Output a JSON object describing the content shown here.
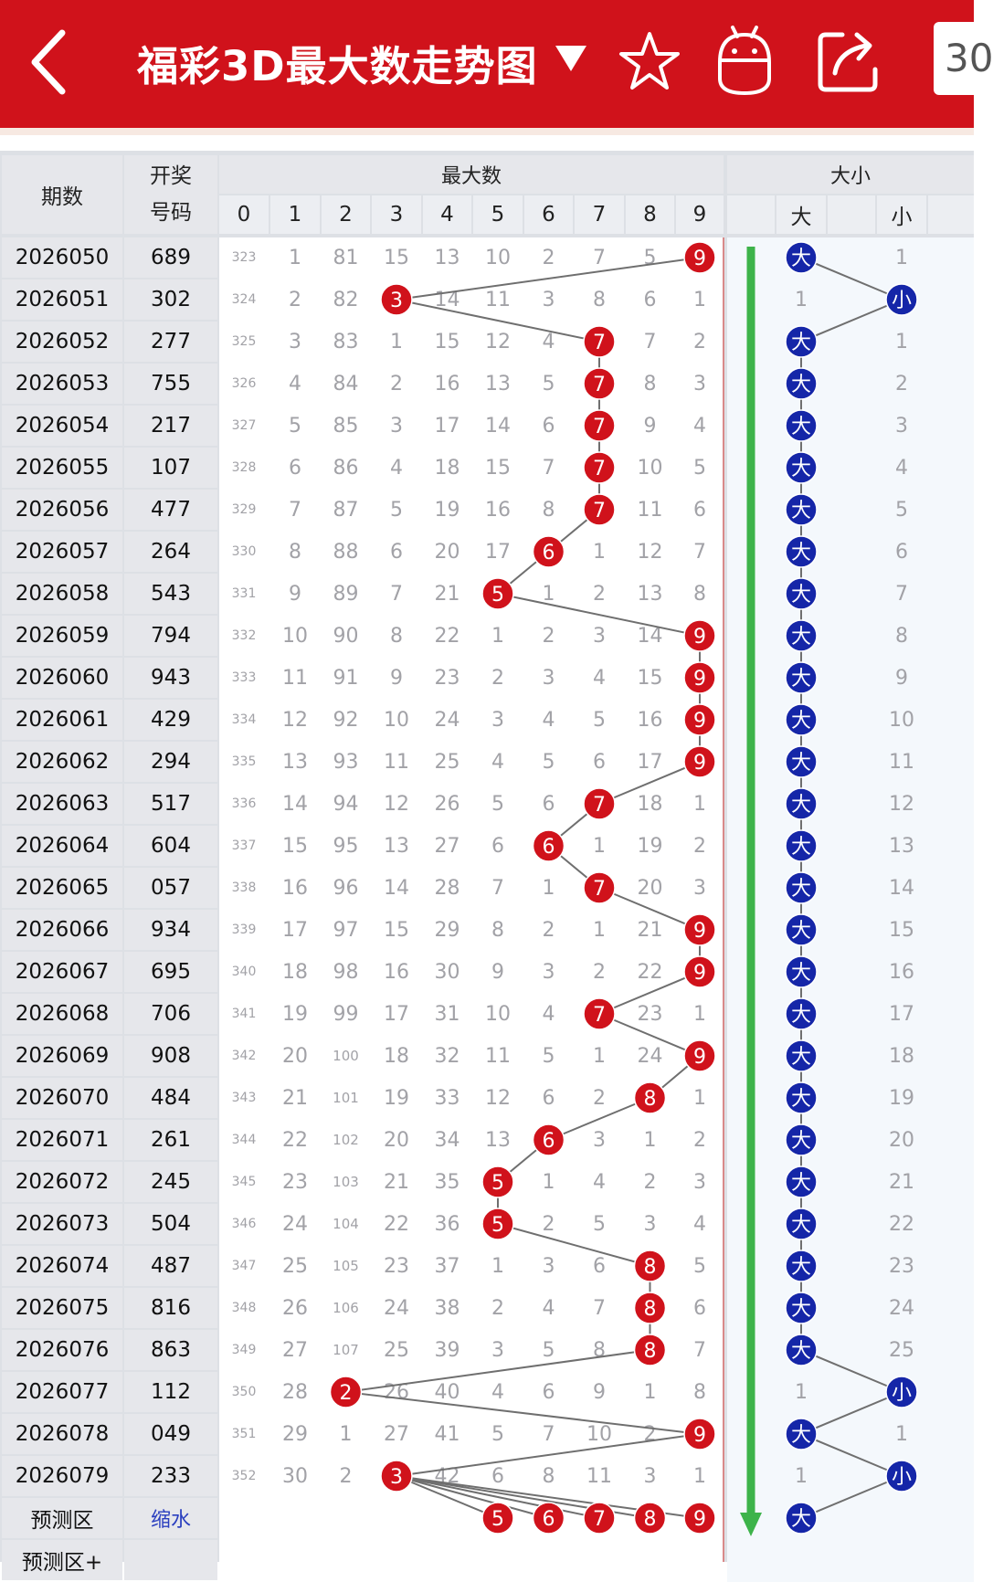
{
  "header": {
    "title": "福彩3D最大数走势图",
    "badge_text": "30",
    "color": "#d0121b"
  },
  "table": {
    "col_period": "期数",
    "col_draw_line1": "开奖",
    "col_draw_line2": "号码",
    "group_max": "最大数",
    "group_size": "大小",
    "digits": [
      "0",
      "1",
      "2",
      "3",
      "4",
      "5",
      "6",
      "7",
      "8",
      "9"
    ],
    "size_big": "大",
    "size_small": "小",
    "rows": [
      {
        "period": "2026050",
        "draw": "689",
        "omissions": [
          "323",
          "1",
          "81",
          "15",
          "13",
          "10",
          "2",
          "7",
          "5",
          "9"
        ],
        "max": 9,
        "size": "大",
        "small_omit": "1"
      },
      {
        "period": "2026051",
        "draw": "302",
        "omissions": [
          "324",
          "2",
          "82",
          "3",
          "14",
          "11",
          "3",
          "8",
          "6",
          "1"
        ],
        "max": 3,
        "size": "小",
        "big_omit": "1"
      },
      {
        "period": "2026052",
        "draw": "277",
        "omissions": [
          "325",
          "3",
          "83",
          "1",
          "15",
          "12",
          "4",
          "7",
          "7",
          "2"
        ],
        "max": 7,
        "size": "大",
        "small_omit": "1"
      },
      {
        "period": "2026053",
        "draw": "755",
        "omissions": [
          "326",
          "4",
          "84",
          "2",
          "16",
          "13",
          "5",
          "7",
          "8",
          "3"
        ],
        "max": 7,
        "size": "大",
        "small_omit": "2"
      },
      {
        "period": "2026054",
        "draw": "217",
        "omissions": [
          "327",
          "5",
          "85",
          "3",
          "17",
          "14",
          "6",
          "7",
          "9",
          "4"
        ],
        "max": 7,
        "size": "大",
        "small_omit": "3"
      },
      {
        "period": "2026055",
        "draw": "107",
        "omissions": [
          "328",
          "6",
          "86",
          "4",
          "18",
          "15",
          "7",
          "7",
          "10",
          "5"
        ],
        "max": 7,
        "size": "大",
        "small_omit": "4"
      },
      {
        "period": "2026056",
        "draw": "477",
        "omissions": [
          "329",
          "7",
          "87",
          "5",
          "19",
          "16",
          "8",
          "7",
          "11",
          "6"
        ],
        "max": 7,
        "size": "大",
        "small_omit": "5"
      },
      {
        "period": "2026057",
        "draw": "264",
        "omissions": [
          "330",
          "8",
          "88",
          "6",
          "20",
          "17",
          "6",
          "1",
          "12",
          "7"
        ],
        "max": 6,
        "size": "大",
        "small_omit": "6"
      },
      {
        "period": "2026058",
        "draw": "543",
        "omissions": [
          "331",
          "9",
          "89",
          "7",
          "21",
          "5",
          "1",
          "2",
          "13",
          "8"
        ],
        "max": 5,
        "size": "大",
        "small_omit": "7"
      },
      {
        "period": "2026059",
        "draw": "794",
        "omissions": [
          "332",
          "10",
          "90",
          "8",
          "22",
          "1",
          "2",
          "3",
          "14",
          "9"
        ],
        "max": 9,
        "size": "大",
        "small_omit": "8"
      },
      {
        "period": "2026060",
        "draw": "943",
        "omissions": [
          "333",
          "11",
          "91",
          "9",
          "23",
          "2",
          "3",
          "4",
          "15",
          "9"
        ],
        "max": 9,
        "size": "大",
        "small_omit": "9"
      },
      {
        "period": "2026061",
        "draw": "429",
        "omissions": [
          "334",
          "12",
          "92",
          "10",
          "24",
          "3",
          "4",
          "5",
          "16",
          "9"
        ],
        "max": 9,
        "size": "大",
        "small_omit": "10"
      },
      {
        "period": "2026062",
        "draw": "294",
        "omissions": [
          "335",
          "13",
          "93",
          "11",
          "25",
          "4",
          "5",
          "6",
          "17",
          "9"
        ],
        "max": 9,
        "size": "大",
        "small_omit": "11"
      },
      {
        "period": "2026063",
        "draw": "517",
        "omissions": [
          "336",
          "14",
          "94",
          "12",
          "26",
          "5",
          "6",
          "7",
          "18",
          "1"
        ],
        "max": 7,
        "size": "大",
        "small_omit": "12"
      },
      {
        "period": "2026064",
        "draw": "604",
        "omissions": [
          "337",
          "15",
          "95",
          "13",
          "27",
          "6",
          "6",
          "1",
          "19",
          "2"
        ],
        "max": 6,
        "size": "大",
        "small_omit": "13"
      },
      {
        "period": "2026065",
        "draw": "057",
        "omissions": [
          "338",
          "16",
          "96",
          "14",
          "28",
          "7",
          "1",
          "7",
          "20",
          "3"
        ],
        "max": 7,
        "size": "大",
        "small_omit": "14"
      },
      {
        "period": "2026066",
        "draw": "934",
        "omissions": [
          "339",
          "17",
          "97",
          "15",
          "29",
          "8",
          "2",
          "1",
          "21",
          "9"
        ],
        "max": 9,
        "size": "大",
        "small_omit": "15"
      },
      {
        "period": "2026067",
        "draw": "695",
        "omissions": [
          "340",
          "18",
          "98",
          "16",
          "30",
          "9",
          "3",
          "2",
          "22",
          "9"
        ],
        "max": 9,
        "size": "大",
        "small_omit": "16"
      },
      {
        "period": "2026068",
        "draw": "706",
        "omissions": [
          "341",
          "19",
          "99",
          "17",
          "31",
          "10",
          "4",
          "7",
          "23",
          "1"
        ],
        "max": 7,
        "size": "大",
        "small_omit": "17"
      },
      {
        "period": "2026069",
        "draw": "908",
        "omissions": [
          "342",
          "20",
          "100",
          "18",
          "32",
          "11",
          "5",
          "1",
          "24",
          "9"
        ],
        "max": 9,
        "size": "大",
        "small_omit": "18"
      },
      {
        "period": "2026070",
        "draw": "484",
        "omissions": [
          "343",
          "21",
          "101",
          "19",
          "33",
          "12",
          "6",
          "2",
          "8",
          "1"
        ],
        "max": 8,
        "size": "大",
        "small_omit": "19"
      },
      {
        "period": "2026071",
        "draw": "261",
        "omissions": [
          "344",
          "22",
          "102",
          "20",
          "34",
          "13",
          "6",
          "3",
          "1",
          "2"
        ],
        "max": 6,
        "size": "大",
        "small_omit": "20"
      },
      {
        "period": "2026072",
        "draw": "245",
        "omissions": [
          "345",
          "23",
          "103",
          "21",
          "35",
          "5",
          "1",
          "4",
          "2",
          "3"
        ],
        "max": 5,
        "size": "大",
        "small_omit": "21"
      },
      {
        "period": "2026073",
        "draw": "504",
        "omissions": [
          "346",
          "24",
          "104",
          "22",
          "36",
          "5",
          "2",
          "5",
          "3",
          "4"
        ],
        "max": 5,
        "size": "大",
        "small_omit": "22"
      },
      {
        "period": "2026074",
        "draw": "487",
        "omissions": [
          "347",
          "25",
          "105",
          "23",
          "37",
          "1",
          "3",
          "6",
          "8",
          "5"
        ],
        "max": 8,
        "size": "大",
        "small_omit": "23"
      },
      {
        "period": "2026075",
        "draw": "816",
        "omissions": [
          "348",
          "26",
          "106",
          "24",
          "38",
          "2",
          "4",
          "7",
          "8",
          "6"
        ],
        "max": 8,
        "size": "大",
        "small_omit": "24"
      },
      {
        "period": "2026076",
        "draw": "863",
        "omissions": [
          "349",
          "27",
          "107",
          "25",
          "39",
          "3",
          "5",
          "8",
          "8",
          "7"
        ],
        "max": 8,
        "size": "大",
        "small_omit": "25"
      },
      {
        "period": "2026077",
        "draw": "112",
        "omissions": [
          "350",
          "28",
          "2",
          "26",
          "40",
          "4",
          "6",
          "9",
          "1",
          "8"
        ],
        "max": 2,
        "size": "小",
        "big_omit": "1"
      },
      {
        "period": "2026078",
        "draw": "049",
        "omissions": [
          "351",
          "29",
          "1",
          "27",
          "41",
          "5",
          "7",
          "10",
          "2",
          "9"
        ],
        "max": 9,
        "size": "大",
        "small_omit": "1"
      },
      {
        "period": "2026079",
        "draw": "233",
        "omissions": [
          "352",
          "30",
          "2",
          "3",
          "42",
          "6",
          "8",
          "11",
          "3",
          "1"
        ],
        "max": 3,
        "size": "小",
        "big_omit": "1"
      }
    ],
    "predict_label": "预测区",
    "predict_link": "缩水",
    "predict_plus_label": "预测区+",
    "predict_balls": [
      "5",
      "6",
      "7",
      "8",
      "9"
    ],
    "predict_size": "大",
    "colors": {
      "red_ball": "#d0121b",
      "blue_ball": "#1526a8",
      "arrow": "#3db34a",
      "divider": "#d98a8a"
    }
  }
}
